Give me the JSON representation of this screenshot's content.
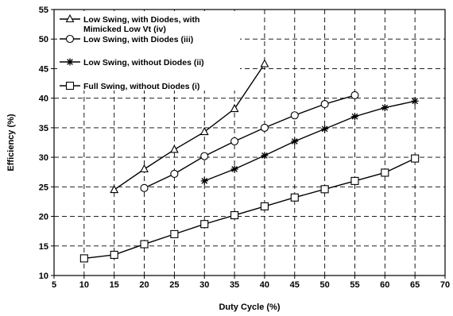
{
  "chart_data": {
    "type": "line",
    "xlabel": "Duty Cycle (%)",
    "ylabel": "Efficiency (%)",
    "xlim": [
      5,
      70
    ],
    "ylim": [
      10,
      55
    ],
    "xticks": [
      5,
      10,
      15,
      20,
      25,
      30,
      35,
      40,
      45,
      50,
      55,
      60,
      65,
      70
    ],
    "yticks": [
      10,
      15,
      20,
      25,
      30,
      35,
      40,
      45,
      50,
      55
    ],
    "grid": true,
    "legend_position": "top-left",
    "series": [
      {
        "name": "Low Swing, with Diodes, with Mimicked Low Vt (iv)",
        "legend_lines": [
          "Low Swing, with Diodes, with",
          "Mimicked Low Vt (iv)"
        ],
        "marker": "triangle",
        "x": [
          15,
          20,
          25,
          30,
          35,
          40
        ],
        "y": [
          24.5,
          28,
          31.3,
          34.3,
          38.2,
          45.8
        ]
      },
      {
        "name": "Low Swing, with Diodes (iii)",
        "legend_lines": [
          "Low Swing, with Diodes (iii)"
        ],
        "marker": "circle",
        "x": [
          20,
          25,
          30,
          35,
          40,
          45,
          50,
          55
        ],
        "y": [
          24.8,
          27.2,
          30.2,
          32.7,
          35,
          37.1,
          39,
          40.5
        ]
      },
      {
        "name": "Low Swing, without Diodes (ii)",
        "legend_lines": [
          "Low Swing, without Diodes (ii)"
        ],
        "marker": "asterisk",
        "x": [
          30,
          35,
          40,
          45,
          50,
          55,
          60,
          65
        ],
        "y": [
          26,
          28,
          30.3,
          32.7,
          34.8,
          36.9,
          38.4,
          39.5
        ]
      },
      {
        "name": "Full Swing, without Diodes (i)",
        "legend_lines": [
          "Full Swing, without Diodes (i)"
        ],
        "marker": "square",
        "x": [
          10,
          15,
          20,
          25,
          30,
          35,
          40,
          45,
          50,
          55,
          60,
          65
        ],
        "y": [
          12.9,
          13.5,
          15.3,
          17,
          18.7,
          20.2,
          21.7,
          23.2,
          24.6,
          26,
          27.4,
          29.8
        ]
      }
    ]
  }
}
